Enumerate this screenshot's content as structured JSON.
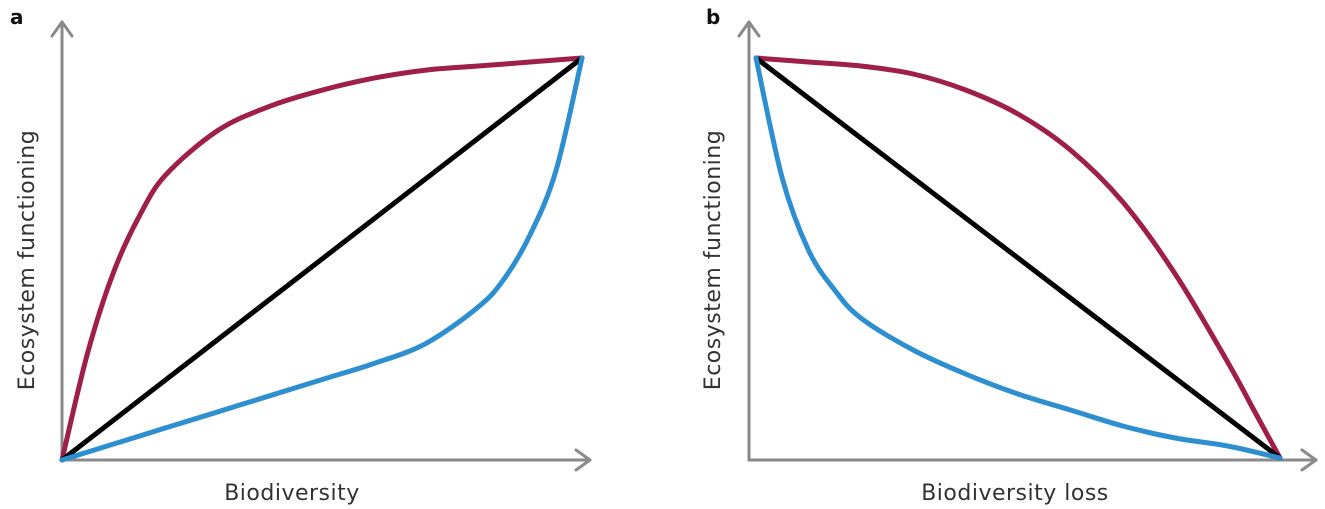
{
  "chart_data": [
    {
      "type": "line",
      "panel_label": "a",
      "title": "",
      "xlabel": "Biodiversity",
      "ylabel": "Ecosystem functioning",
      "xlim": [
        0,
        1
      ],
      "ylim": [
        0,
        1
      ],
      "grid": false,
      "legend": "none",
      "series": [
        {
          "color": "#9e1f4a",
          "x": [
            0,
            0.05,
            0.1,
            0.15,
            0.2,
            0.3,
            0.4,
            0.5,
            0.6,
            0.7,
            0.8,
            0.9,
            1.0
          ],
          "y": [
            0,
            0.27,
            0.47,
            0.61,
            0.71,
            0.82,
            0.88,
            0.92,
            0.95,
            0.97,
            0.98,
            0.99,
            1.0
          ]
        },
        {
          "color": "#000000",
          "x": [
            0,
            1
          ],
          "y": [
            0,
            1
          ]
        },
        {
          "color": "#2e8fd0",
          "x": [
            0,
            0.1,
            0.2,
            0.3,
            0.4,
            0.5,
            0.6,
            0.7,
            0.8,
            0.85,
            0.9,
            0.95,
            1.0
          ],
          "y": [
            0,
            0.04,
            0.08,
            0.12,
            0.16,
            0.2,
            0.24,
            0.29,
            0.38,
            0.45,
            0.56,
            0.72,
            1.0
          ]
        }
      ]
    },
    {
      "type": "line",
      "panel_label": "b",
      "title": "",
      "xlabel": "Biodiversity loss",
      "ylabel": "Ecosystem functioning",
      "xlim": [
        0,
        1
      ],
      "ylim": [
        0,
        1
      ],
      "grid": false,
      "legend": "none",
      "series": [
        {
          "color": "#9e1f4a",
          "x": [
            0,
            0.1,
            0.2,
            0.3,
            0.4,
            0.5,
            0.6,
            0.7,
            0.8,
            0.9,
            0.95,
            1.0
          ],
          "y": [
            1.0,
            0.99,
            0.98,
            0.96,
            0.92,
            0.86,
            0.77,
            0.64,
            0.46,
            0.24,
            0.12,
            0
          ]
        },
        {
          "color": "#000000",
          "x": [
            0,
            1
          ],
          "y": [
            1,
            0
          ]
        },
        {
          "color": "#2e8fd0",
          "x": [
            0,
            0.05,
            0.1,
            0.15,
            0.2,
            0.3,
            0.4,
            0.5,
            0.6,
            0.7,
            0.8,
            0.9,
            1.0
          ],
          "y": [
            1.0,
            0.7,
            0.52,
            0.42,
            0.35,
            0.27,
            0.21,
            0.16,
            0.12,
            0.08,
            0.05,
            0.03,
            0
          ]
        }
      ]
    }
  ]
}
